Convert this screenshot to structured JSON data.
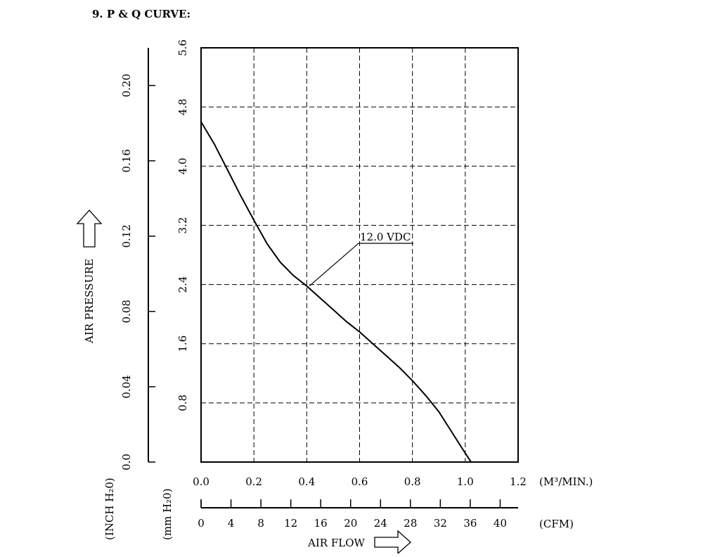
{
  "page_title": "9. P & Q CURVE:",
  "chart_data": {
    "type": "line",
    "title": "9. P & Q CURVE:",
    "x_primary": {
      "unit": "(M³/MIN.)",
      "range": [
        0,
        1.2
      ],
      "ticks": [
        0.0,
        0.2,
        0.4,
        0.6,
        0.8,
        1.0,
        1.2
      ],
      "tick_labels": [
        "0.0",
        "0.2",
        "0.4",
        "0.6",
        "0.8",
        "1.0",
        "1.2"
      ]
    },
    "x_secondary": {
      "unit": "(CFM)",
      "range": [
        0,
        42.4
      ],
      "ticks": [
        0,
        4,
        8,
        12,
        16,
        20,
        24,
        28,
        32,
        36,
        40
      ],
      "tick_labels": [
        "0",
        "4",
        "8",
        "12",
        "16",
        "20",
        "24",
        "28",
        "32",
        "36",
        "40"
      ]
    },
    "xlabel": "AIR FLOW",
    "y_primary": {
      "unit": "(mm H₂0)",
      "range": [
        0,
        5.6
      ],
      "ticks": [
        0.8,
        1.6,
        2.4,
        3.2,
        4.0,
        4.8,
        5.6
      ],
      "tick_labels": [
        "0.8",
        "1.6",
        "2.4",
        "3.2",
        "4.0",
        "4.8",
        "5.6"
      ]
    },
    "y_secondary": {
      "unit": "(INCH H₂0)",
      "range": [
        0,
        0.22
      ],
      "ticks": [
        0.0,
        0.04,
        0.08,
        0.12,
        0.16,
        0.2
      ],
      "tick_labels": [
        "0.0",
        "0.04",
        "0.08",
        "0.12",
        "0.16",
        "0.20"
      ]
    },
    "ylabel": "AIR PRESSURE",
    "grid": true,
    "series": [
      {
        "name": "12.0 VDC",
        "x": [
          0.0,
          0.05,
          0.1,
          0.15,
          0.2,
          0.25,
          0.3,
          0.35,
          0.4,
          0.45,
          0.5,
          0.55,
          0.6,
          0.65,
          0.7,
          0.75,
          0.8,
          0.85,
          0.9,
          0.95,
          1.0,
          1.05
        ],
        "y": [
          4.6,
          4.3,
          3.95,
          3.6,
          3.27,
          2.95,
          2.7,
          2.52,
          2.38,
          2.22,
          2.06,
          1.9,
          1.76,
          1.6,
          1.44,
          1.28,
          1.1,
          0.9,
          0.68,
          0.4,
          0.12,
          -0.15
        ]
      }
    ],
    "annotation": {
      "text": "12.0 VDC",
      "points_to": {
        "x": 0.41,
        "y": 2.38
      }
    }
  }
}
